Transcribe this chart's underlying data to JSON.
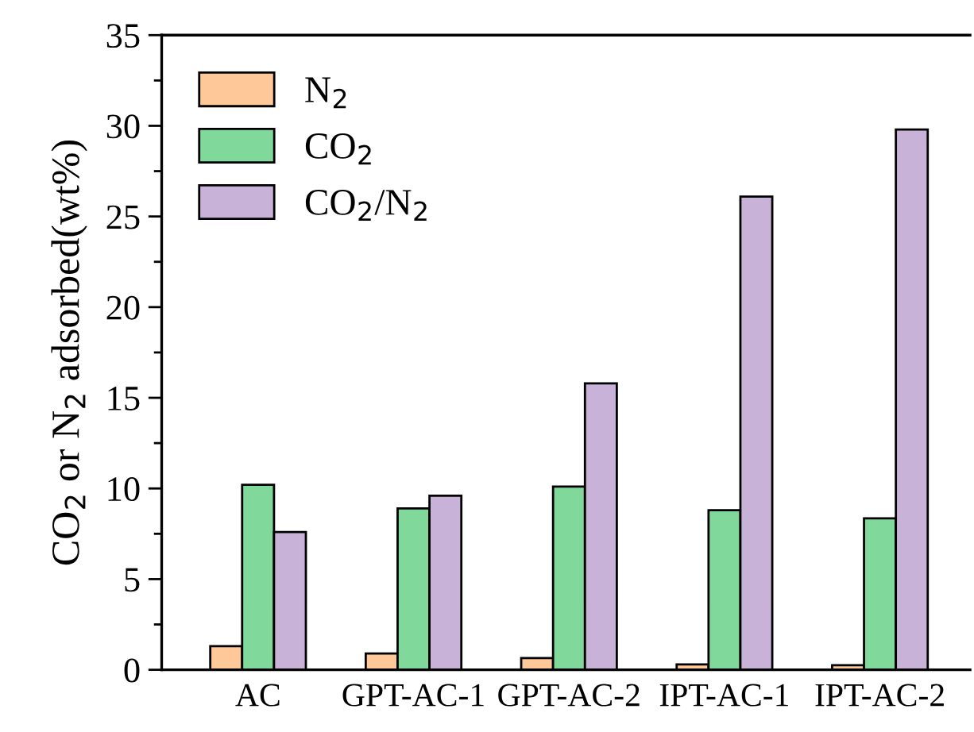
{
  "chart_data": {
    "type": "bar",
    "ylabel": "CO$_{2}$ or N$_{2}$ adsorbed(wt%)",
    "categories": [
      "AC",
      "GPT-AC-1",
      "GPT-AC-2",
      "IPT-AC-1",
      "IPT-AC-2"
    ],
    "series": [
      {
        "name": "N$_{2}$",
        "color": "#fec898",
        "values": [
          1.3,
          0.9,
          0.65,
          0.3,
          0.25
        ]
      },
      {
        "name": "CO$_{2}$",
        "color": "#80d99a",
        "values": [
          10.2,
          8.9,
          10.1,
          8.8,
          8.35
        ]
      },
      {
        "name": "CO$_{2}$/N$_{2}$",
        "color": "#c8b2d8",
        "values": [
          7.6,
          9.6,
          15.8,
          26.1,
          29.8
        ]
      }
    ],
    "ylim": [
      0,
      35
    ],
    "yticks": [
      0,
      5,
      10,
      15,
      20,
      25,
      30,
      35
    ],
    "legend": "top left",
    "grid": false
  }
}
